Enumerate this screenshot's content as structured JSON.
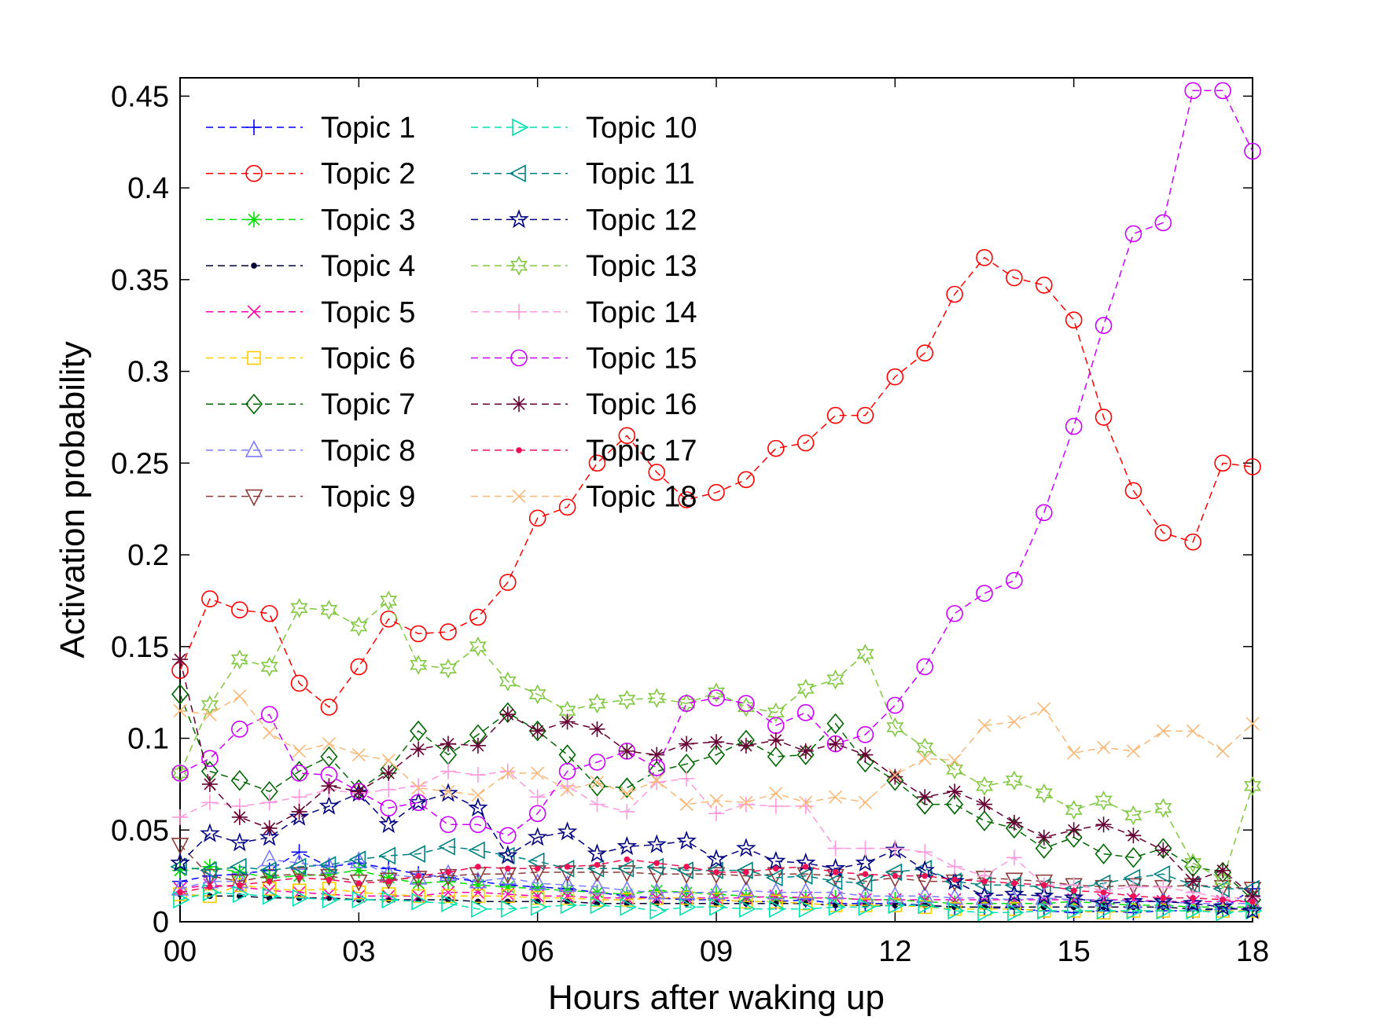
{
  "chart_data": {
    "type": "line",
    "title": "",
    "xlabel": "Hours after waking up",
    "ylabel": "Activation probability",
    "xlim": [
      0,
      18
    ],
    "ylim": [
      0,
      0.46
    ],
    "x_ticks": [
      0,
      3,
      6,
      9,
      12,
      15,
      18
    ],
    "x_tick_labels": [
      "00",
      "03",
      "06",
      "09",
      "12",
      "15",
      "18"
    ],
    "y_ticks": [
      0,
      0.05,
      0.1,
      0.15,
      0.2,
      0.25,
      0.3,
      0.35,
      0.4,
      0.45
    ],
    "y_tick_labels": [
      "0",
      "0.05",
      "0.1",
      "0.15",
      "0.2",
      "0.25",
      "0.3",
      "0.35",
      "0.4",
      "0.45"
    ],
    "grid": false,
    "legend_position": "top-left",
    "x": [
      0,
      0.5,
      1,
      1.5,
      2,
      2.5,
      3,
      3.5,
      4,
      4.5,
      5,
      5.5,
      6,
      6.5,
      7,
      7.5,
      8,
      8.5,
      9,
      9.5,
      10,
      10.5,
      11,
      11.5,
      12,
      12.5,
      13,
      13.5,
      14,
      14.5,
      15,
      15.5,
      16,
      16.5,
      17,
      17.5,
      18
    ],
    "series": [
      {
        "name": "Topic 1",
        "color": "#0000ff",
        "marker": "plus",
        "values": [
          0.022,
          0.025,
          0.026,
          0.028,
          0.038,
          0.03,
          0.032,
          0.029,
          0.026,
          0.024,
          0.022,
          0.02,
          0.019,
          0.018,
          0.016,
          0.014,
          0.013,
          0.012,
          0.012,
          0.011,
          0.011,
          0.012,
          0.01,
          0.01,
          0.01,
          0.009,
          0.008,
          0.008,
          0.007,
          0.006,
          0.005,
          0.006,
          0.005,
          0.006,
          0.006,
          0.007,
          0.018
        ]
      },
      {
        "name": "Topic 2",
        "color": "#ff0000",
        "marker": "circle",
        "values": [
          0.137,
          0.176,
          0.17,
          0.168,
          0.13,
          0.117,
          0.139,
          0.165,
          0.157,
          0.158,
          0.166,
          0.185,
          0.22,
          0.226,
          0.25,
          0.265,
          0.245,
          0.23,
          0.234,
          0.241,
          0.258,
          0.261,
          0.276,
          0.276,
          0.297,
          0.31,
          0.342,
          0.362,
          0.351,
          0.347,
          0.328,
          0.275,
          0.235,
          0.212,
          0.207,
          0.25,
          0.248
        ]
      },
      {
        "name": "Topic 3",
        "color": "#00dd00",
        "marker": "asterisk",
        "values": [
          0.028,
          0.03,
          0.027,
          0.024,
          0.025,
          0.026,
          0.028,
          0.024,
          0.021,
          0.022,
          0.02,
          0.019,
          0.018,
          0.017,
          0.016,
          0.015,
          0.017,
          0.016,
          0.015,
          0.014,
          0.013,
          0.013,
          0.013,
          0.012,
          0.012,
          0.011,
          0.01,
          0.01,
          0.01,
          0.01,
          0.011,
          0.01,
          0.009,
          0.009,
          0.008,
          0.008,
          0.008
        ]
      },
      {
        "name": "Topic 4",
        "color": "#000033",
        "marker": "dot",
        "values": [
          0.015,
          0.014,
          0.014,
          0.013,
          0.013,
          0.013,
          0.012,
          0.012,
          0.012,
          0.012,
          0.011,
          0.011,
          0.011,
          0.011,
          0.01,
          0.01,
          0.01,
          0.01,
          0.01,
          0.01,
          0.01,
          0.01,
          0.009,
          0.009,
          0.009,
          0.009,
          0.008,
          0.008,
          0.008,
          0.008,
          0.008,
          0.008,
          0.008,
          0.008,
          0.007,
          0.007,
          0.007
        ]
      },
      {
        "name": "Topic 5",
        "color": "#ff00aa",
        "marker": "x",
        "values": [
          0.018,
          0.02,
          0.019,
          0.017,
          0.016,
          0.015,
          0.014,
          0.014,
          0.014,
          0.016,
          0.016,
          0.015,
          0.014,
          0.014,
          0.013,
          0.013,
          0.013,
          0.013,
          0.013,
          0.013,
          0.014,
          0.013,
          0.013,
          0.012,
          0.012,
          0.012,
          0.012,
          0.012,
          0.012,
          0.012,
          0.012,
          0.012,
          0.012,
          0.011,
          0.011,
          0.011,
          0.011
        ]
      },
      {
        "name": "Topic 6",
        "color": "#ffcc00",
        "marker": "square",
        "values": [
          0.015,
          0.014,
          0.02,
          0.018,
          0.017,
          0.018,
          0.016,
          0.015,
          0.014,
          0.014,
          0.014,
          0.014,
          0.013,
          0.013,
          0.012,
          0.012,
          0.013,
          0.013,
          0.012,
          0.011,
          0.011,
          0.01,
          0.009,
          0.009,
          0.009,
          0.008,
          0.007,
          0.007,
          0.007,
          0.006,
          0.006,
          0.005,
          0.006,
          0.006,
          0.006,
          0.006,
          0.006
        ]
      },
      {
        "name": "Topic 7",
        "color": "#006600",
        "marker": "diamond",
        "values": [
          0.124,
          0.082,
          0.077,
          0.071,
          0.082,
          0.09,
          0.072,
          0.083,
          0.104,
          0.091,
          0.102,
          0.114,
          0.104,
          0.091,
          0.074,
          0.073,
          0.082,
          0.086,
          0.091,
          0.099,
          0.09,
          0.091,
          0.108,
          0.087,
          0.077,
          0.064,
          0.064,
          0.055,
          0.051,
          0.04,
          0.046,
          0.037,
          0.035,
          0.04,
          0.03,
          0.027,
          0.012
        ]
      },
      {
        "name": "Topic 8",
        "color": "#7b7bff",
        "marker": "triangle-up",
        "values": [
          0.018,
          0.022,
          0.022,
          0.034,
          0.032,
          0.03,
          0.033,
          0.026,
          0.024,
          0.026,
          0.022,
          0.024,
          0.021,
          0.02,
          0.019,
          0.017,
          0.016,
          0.016,
          0.016,
          0.017,
          0.016,
          0.016,
          0.016,
          0.014,
          0.014,
          0.014,
          0.013,
          0.013,
          0.012,
          0.013,
          0.012,
          0.012,
          0.011,
          0.011,
          0.01,
          0.01,
          0.01
        ]
      },
      {
        "name": "Topic 9",
        "color": "#8b3a3a",
        "marker": "triangle-down",
        "values": [
          0.042,
          0.025,
          0.022,
          0.025,
          0.026,
          0.025,
          0.022,
          0.023,
          0.024,
          0.025,
          0.026,
          0.026,
          0.027,
          0.027,
          0.027,
          0.027,
          0.026,
          0.026,
          0.026,
          0.025,
          0.026,
          0.026,
          0.025,
          0.022,
          0.024,
          0.022,
          0.022,
          0.024,
          0.023,
          0.022,
          0.02,
          0.019,
          0.02,
          0.019,
          0.02,
          0.019,
          0.018
        ]
      },
      {
        "name": "Topic 10",
        "color": "#00e0b0",
        "marker": "triangle-right",
        "values": [
          0.012,
          0.016,
          0.015,
          0.014,
          0.013,
          0.012,
          0.012,
          0.012,
          0.011,
          0.01,
          0.007,
          0.007,
          0.008,
          0.009,
          0.009,
          0.008,
          0.006,
          0.008,
          0.008,
          0.007,
          0.007,
          0.007,
          0.008,
          0.008,
          0.009,
          0.009,
          0.006,
          0.005,
          0.005,
          0.006,
          0.006,
          0.006,
          0.006,
          0.006,
          0.006,
          0.005,
          0.006
        ]
      },
      {
        "name": "Topic 11",
        "color": "#008080",
        "marker": "triangle-left",
        "values": [
          0.03,
          0.028,
          0.03,
          0.028,
          0.03,
          0.031,
          0.034,
          0.036,
          0.037,
          0.041,
          0.039,
          0.036,
          0.033,
          0.029,
          0.029,
          0.029,
          0.03,
          0.028,
          0.028,
          0.028,
          0.024,
          0.025,
          0.022,
          0.021,
          0.027,
          0.029,
          0.022,
          0.02,
          0.02,
          0.019,
          0.018,
          0.021,
          0.024,
          0.026,
          0.02,
          0.018,
          0.018
        ]
      },
      {
        "name": "Topic 12",
        "color": "#000080",
        "marker": "pentagram",
        "values": [
          0.032,
          0.048,
          0.043,
          0.046,
          0.057,
          0.063,
          0.07,
          0.053,
          0.065,
          0.07,
          0.062,
          0.036,
          0.046,
          0.049,
          0.037,
          0.041,
          0.042,
          0.044,
          0.034,
          0.04,
          0.033,
          0.032,
          0.029,
          0.032,
          0.039,
          0.028,
          0.022,
          0.014,
          0.015,
          0.014,
          0.013,
          0.01,
          0.011,
          0.011,
          0.01,
          0.008,
          0.006
        ]
      },
      {
        "name": "Topic 13",
        "color": "#80c840",
        "marker": "hexagram",
        "values": [
          0.081,
          0.118,
          0.143,
          0.139,
          0.171,
          0.17,
          0.161,
          0.175,
          0.14,
          0.138,
          0.15,
          0.131,
          0.124,
          0.115,
          0.119,
          0.121,
          0.122,
          0.119,
          0.125,
          0.117,
          0.114,
          0.127,
          0.132,
          0.146,
          0.106,
          0.095,
          0.083,
          0.074,
          0.077,
          0.07,
          0.061,
          0.066,
          0.058,
          0.062,
          0.032,
          0.023,
          0.074
        ]
      },
      {
        "name": "Topic 14",
        "color": "#ff99dd",
        "marker": "plus",
        "values": [
          0.057,
          0.065,
          0.063,
          0.065,
          0.068,
          0.072,
          0.07,
          0.072,
          0.074,
          0.082,
          0.08,
          0.082,
          0.068,
          0.074,
          0.064,
          0.06,
          0.076,
          0.078,
          0.059,
          0.064,
          0.063,
          0.063,
          0.04,
          0.04,
          0.04,
          0.038,
          0.03,
          0.025,
          0.035,
          0.02,
          0.02,
          0.017,
          0.019,
          0.019,
          0.016,
          0.013,
          0.013
        ]
      },
      {
        "name": "Topic 15",
        "color": "#cc00ff",
        "marker": "circle",
        "values": [
          0.081,
          0.089,
          0.105,
          0.113,
          0.081,
          0.08,
          0.071,
          0.062,
          0.065,
          0.053,
          0.053,
          0.047,
          0.059,
          0.082,
          0.087,
          0.093,
          0.084,
          0.119,
          0.122,
          0.119,
          0.107,
          0.114,
          0.097,
          0.102,
          0.118,
          0.139,
          0.168,
          0.179,
          0.186,
          0.223,
          0.27,
          0.325,
          0.375,
          0.381,
          0.453,
          0.453,
          0.42
        ]
      },
      {
        "name": "Topic 16",
        "color": "#660033",
        "marker": "asterisk",
        "values": [
          0.143,
          0.075,
          0.057,
          0.051,
          0.06,
          0.074,
          0.071,
          0.081,
          0.094,
          0.097,
          0.096,
          0.113,
          0.104,
          0.109,
          0.105,
          0.093,
          0.091,
          0.097,
          0.098,
          0.096,
          0.099,
          0.093,
          0.097,
          0.091,
          0.079,
          0.068,
          0.071,
          0.064,
          0.054,
          0.046,
          0.05,
          0.053,
          0.047,
          0.039,
          0.022,
          0.028,
          0.014
        ]
      },
      {
        "name": "Topic 17",
        "color": "#ee1155",
        "marker": "dot",
        "values": [
          0.016,
          0.019,
          0.02,
          0.022,
          0.024,
          0.023,
          0.021,
          0.022,
          0.025,
          0.027,
          0.03,
          0.029,
          0.029,
          0.03,
          0.031,
          0.034,
          0.032,
          0.03,
          0.027,
          0.027,
          0.029,
          0.03,
          0.027,
          0.026,
          0.025,
          0.025,
          0.023,
          0.022,
          0.021,
          0.02,
          0.017,
          0.016,
          0.014,
          0.013,
          0.013,
          0.012,
          0.011
        ]
      },
      {
        "name": "Topic 18",
        "color": "#f9b878",
        "marker": "x",
        "values": [
          0.115,
          0.113,
          0.123,
          0.103,
          0.093,
          0.097,
          0.091,
          0.088,
          0.073,
          0.071,
          0.069,
          0.081,
          0.081,
          0.072,
          0.076,
          0.07,
          0.077,
          0.064,
          0.066,
          0.065,
          0.07,
          0.065,
          0.068,
          0.065,
          0.08,
          0.089,
          0.088,
          0.107,
          0.109,
          0.116,
          0.092,
          0.095,
          0.093,
          0.104,
          0.104,
          0.093,
          0.108
        ]
      }
    ]
  }
}
